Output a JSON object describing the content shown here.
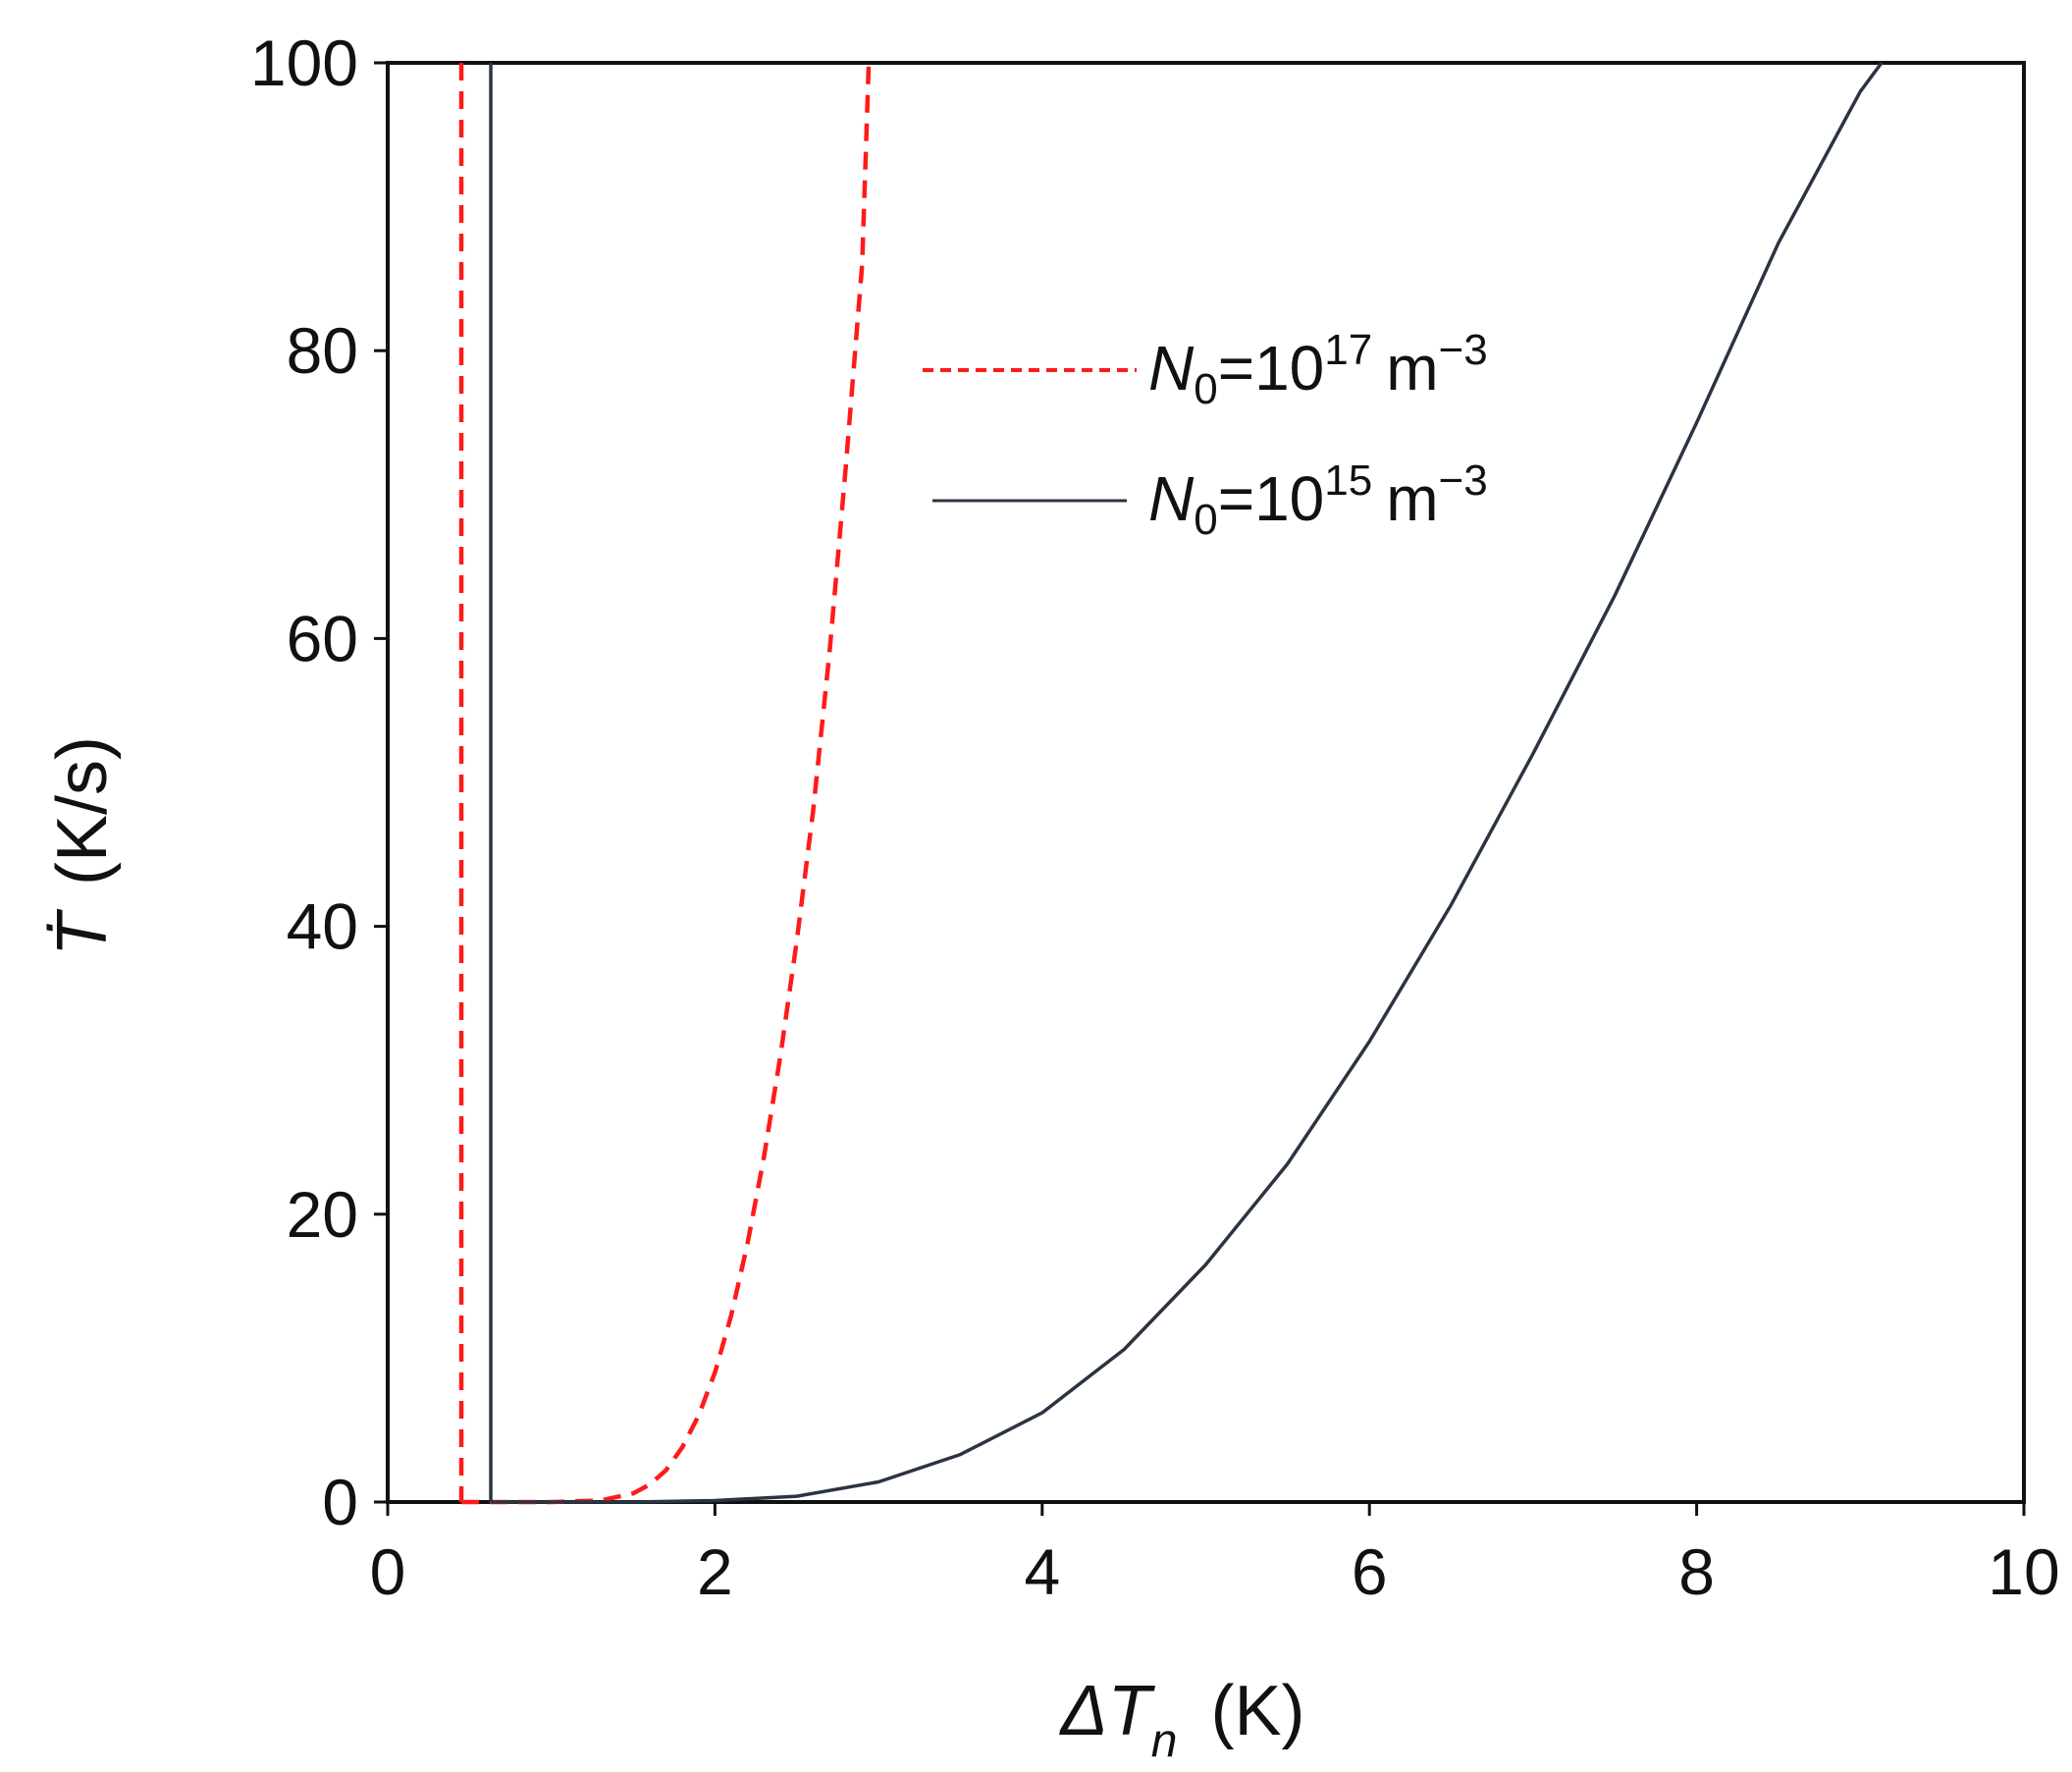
{
  "chart_data": {
    "type": "line",
    "title": "",
    "xlabel": {
      "prefix": "ΔT",
      "subscript": "n",
      "unit": "(K)"
    },
    "ylabel": {
      "symbol": "Ṫ",
      "unit": "(K/s)"
    },
    "xlim": [
      0,
      10
    ],
    "ylim": [
      0,
      100
    ],
    "x_ticks": [
      0,
      2,
      4,
      6,
      8,
      10
    ],
    "y_ticks": [
      0,
      20,
      40,
      60,
      80,
      100
    ],
    "grid": false,
    "legend_position": "top-center",
    "series": [
      {
        "name": {
          "base": "N",
          "sub": "0",
          "eq": "=10",
          "exp": "17",
          "unit": "m",
          "unit_exp": "−3"
        },
        "color": "#ff1a1a",
        "dash": "dashed",
        "vertical_x": 0.45,
        "x": [
          0.45,
          1.0,
          1.3,
          1.5,
          1.6,
          1.7,
          1.8,
          1.9,
          2.0,
          2.1,
          2.2,
          2.3,
          2.4,
          2.5,
          2.6,
          2.7,
          2.8,
          2.9,
          2.94
        ],
        "y": [
          0,
          0,
          0.1,
          0.6,
          1.2,
          2.2,
          3.8,
          6.0,
          9.0,
          13.0,
          18.0,
          24.0,
          31.0,
          39.0,
          48.0,
          59.0,
          72.0,
          86.0,
          100
        ]
      },
      {
        "name": {
          "base": "N",
          "sub": "0",
          "eq": "=10",
          "exp": "15",
          "unit": "m",
          "unit_exp": "−3"
        },
        "color": "#2b3442",
        "dash": "solid",
        "vertical_x": 0.63,
        "x": [
          0.63,
          1.5,
          2.0,
          2.5,
          3.0,
          3.5,
          4.0,
          4.5,
          5.0,
          5.5,
          6.0,
          6.5,
          7.0,
          7.5,
          8.0,
          8.5,
          9.0,
          9.13
        ],
        "y": [
          0,
          0,
          0.1,
          0.4,
          1.4,
          3.3,
          6.2,
          10.6,
          16.5,
          23.5,
          32.0,
          41.5,
          52.0,
          63.0,
          75.0,
          87.5,
          98.0,
          100
        ]
      }
    ]
  }
}
